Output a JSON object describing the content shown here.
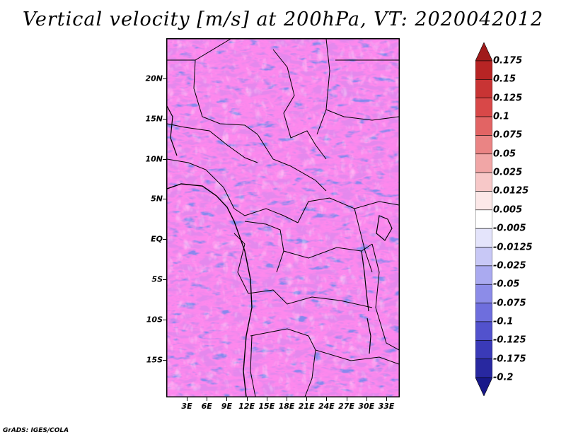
{
  "title": "Vertical velocity [m/s] at 200hPa, VT: 2020042012",
  "footer": "GrADS: IGES/COLA",
  "lat_labels": [
    "20N",
    "15N",
    "10N",
    "5N",
    "EQ",
    "5S",
    "10S",
    "15S"
  ],
  "lon_labels": [
    "3E",
    "6E",
    "9E",
    "12E",
    "15E",
    "18E",
    "21E",
    "24E",
    "27E",
    "30E",
    "33E"
  ],
  "colorbar": {
    "labels": [
      "0.175",
      "0.15",
      "0.125",
      "0.1",
      "0.075",
      "0.05",
      "0.025",
      "0.0125",
      "0.005",
      "-0.005",
      "-0.0125",
      "-0.025",
      "-0.05",
      "-0.075",
      "-0.1",
      "-0.125",
      "-0.175",
      "-0.2"
    ],
    "colors": [
      "#a01a1a",
      "#b72424",
      "#c83434",
      "#d84848",
      "#e26464",
      "#ea8484",
      "#f1a6a6",
      "#f7c8c8",
      "#fce8e8",
      "#ffffff",
      "#e4e4fb",
      "#c8c8f6",
      "#aaaaf0",
      "#8c8ce8",
      "#6e6edd",
      "#5252cd",
      "#3a3ab8",
      "#2828a0",
      "#18188a"
    ]
  },
  "map": {
    "variable": "Vertical velocity",
    "units": "m/s",
    "level": "200hPa",
    "valid_time": "2020042012"
  }
}
